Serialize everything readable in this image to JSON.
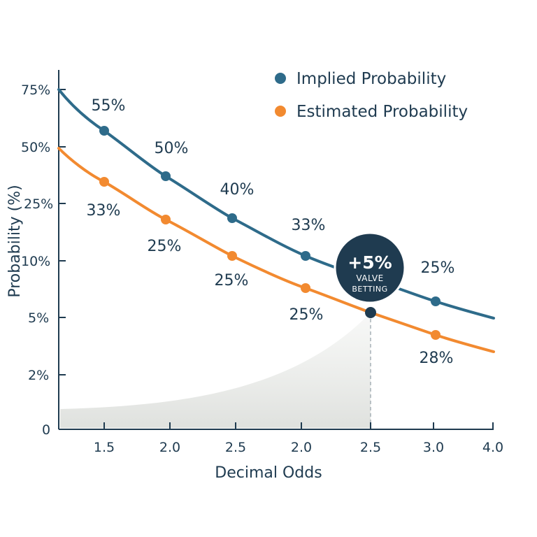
{
  "chart_data": {
    "type": "line",
    "xlabel": "Decimal Odds",
    "ylabel": "Probability (%)",
    "y_tick_labels": [
      "0",
      "2%",
      "5%",
      "5%",
      "10%",
      "25%",
      "50%",
      "75%"
    ],
    "x_tick_labels": [
      "1.5",
      "2.0",
      "2.5",
      "2.0",
      "2.5",
      "3.0",
      "4.0"
    ],
    "grid": false,
    "legend_position": "top-right",
    "series": [
      {
        "name": "Implied Probability",
        "color": "#2e6b8a",
        "points": [
          {
            "x": "1.5",
            "label": "55%"
          },
          {
            "x": "2.0",
            "label": "50%"
          },
          {
            "x": "2.5",
            "label": "40%"
          },
          {
            "x": "2.0",
            "label": "33%"
          },
          {
            "x": "3.0",
            "label": "25%"
          }
        ]
      },
      {
        "name": "Estimated Probability",
        "color": "#f28a30",
        "points": [
          {
            "x": "1.5",
            "label": "33%"
          },
          {
            "x": "2.0",
            "label": "25%"
          },
          {
            "x": "2.5",
            "label": "25%"
          },
          {
            "x": "2.0",
            "label": "25%"
          },
          {
            "x": "3.0",
            "label": "28%"
          }
        ]
      }
    ],
    "annotation": {
      "value": "+5%",
      "line1": "VALVE",
      "line2": "BETTING",
      "x": "2.5",
      "marker_color": "#1f3b50"
    }
  }
}
